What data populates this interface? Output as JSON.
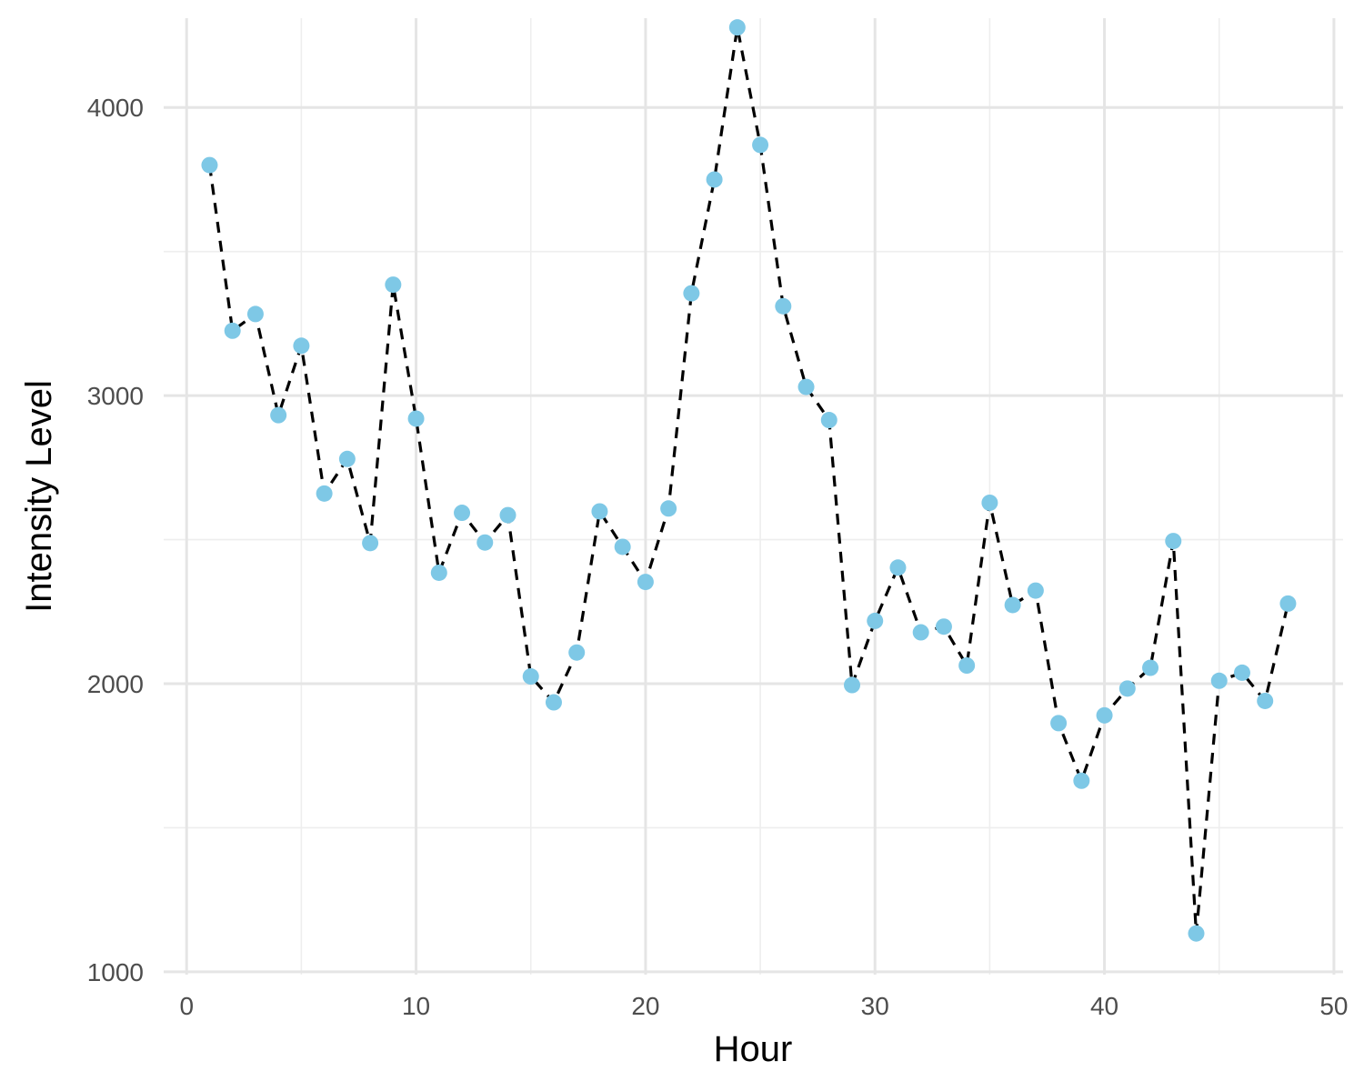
{
  "colors": {
    "point": "#7EC8E6",
    "line": "#000000",
    "grid_major": "#e5e5e5",
    "grid_minor": "#eeeeee",
    "background": "#ffffff"
  },
  "chart_data": {
    "type": "line",
    "title": "",
    "xlabel": "Hour",
    "ylabel": "Intensity Level",
    "xlim": [
      -1,
      50.4
    ],
    "ylim": [
      990,
      4310
    ],
    "x_ticks": [
      0,
      10,
      20,
      30,
      40,
      50
    ],
    "x_tick_labels": [
      "0",
      "10",
      "20",
      "30",
      "40",
      "50"
    ],
    "x_minor_ticks": [
      5,
      15,
      25,
      35,
      45
    ],
    "y_ticks": [
      1000,
      2000,
      3000,
      4000
    ],
    "y_tick_labels": [
      "1000",
      "2000",
      "3000",
      "4000"
    ],
    "y_minor_ticks": [
      1500,
      2500,
      3500
    ],
    "grid": true,
    "line_style": "dashed",
    "series": [
      {
        "x": [
          1,
          2,
          3,
          4,
          5,
          6,
          7,
          8,
          9,
          10,
          11,
          12,
          13,
          14,
          15,
          16,
          17,
          18,
          19,
          20,
          21,
          22,
          23,
          24,
          25,
          26,
          27,
          28,
          29,
          30,
          31,
          32,
          33,
          34,
          35,
          36,
          37,
          38,
          39,
          40,
          41,
          42,
          43,
          44,
          45,
          46,
          47,
          48
        ],
        "values": [
          3800,
          3225,
          3283,
          2932,
          3173,
          2660,
          2780,
          2488,
          3385,
          2920,
          2385,
          2593,
          2490,
          2585,
          2025,
          1935,
          2108,
          2598,
          2475,
          2353,
          2608,
          3355,
          3750,
          4278,
          3870,
          3310,
          3030,
          2915,
          1995,
          2218,
          2403,
          2178,
          2198,
          2063,
          2628,
          2273,
          2323,
          1863,
          1663,
          1890,
          1983,
          2055,
          2495,
          1133,
          2010,
          2038,
          1940,
          2278
        ]
      }
    ]
  }
}
